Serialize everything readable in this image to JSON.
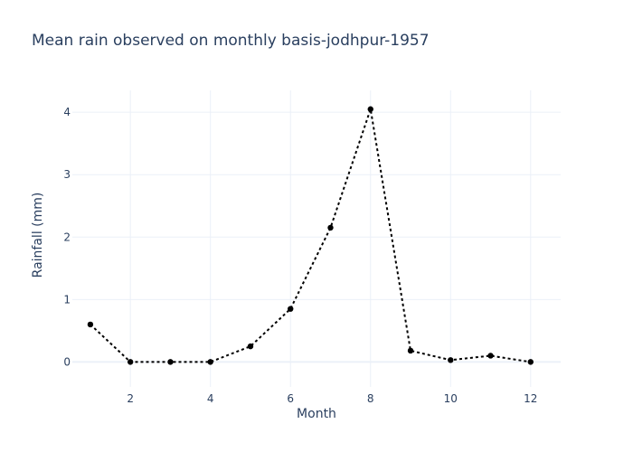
{
  "chart_data": {
    "type": "line",
    "title": "Mean rain observed on monthly basis-jodhpur-1957",
    "xlabel": "Month",
    "ylabel": "Rainfall (mm)",
    "xlim": [
      0.55,
      12.75
    ],
    "ylim": [
      -0.4,
      4.35
    ],
    "xticks": [
      2,
      4,
      6,
      8,
      10,
      12
    ],
    "yticks": [
      0,
      1,
      2,
      3,
      4
    ],
    "grid": true,
    "legend": "none",
    "series": [
      {
        "color": "#000000",
        "line_style": "dotted",
        "marker": "circle",
        "x": [
          1,
          2,
          3,
          4,
          5,
          6,
          7,
          8,
          9,
          10,
          11,
          12
        ],
        "y": [
          0.6,
          0.0,
          0.0,
          0.0,
          0.25,
          0.85,
          2.15,
          4.05,
          0.18,
          0.03,
          0.1,
          0.0
        ]
      }
    ]
  }
}
